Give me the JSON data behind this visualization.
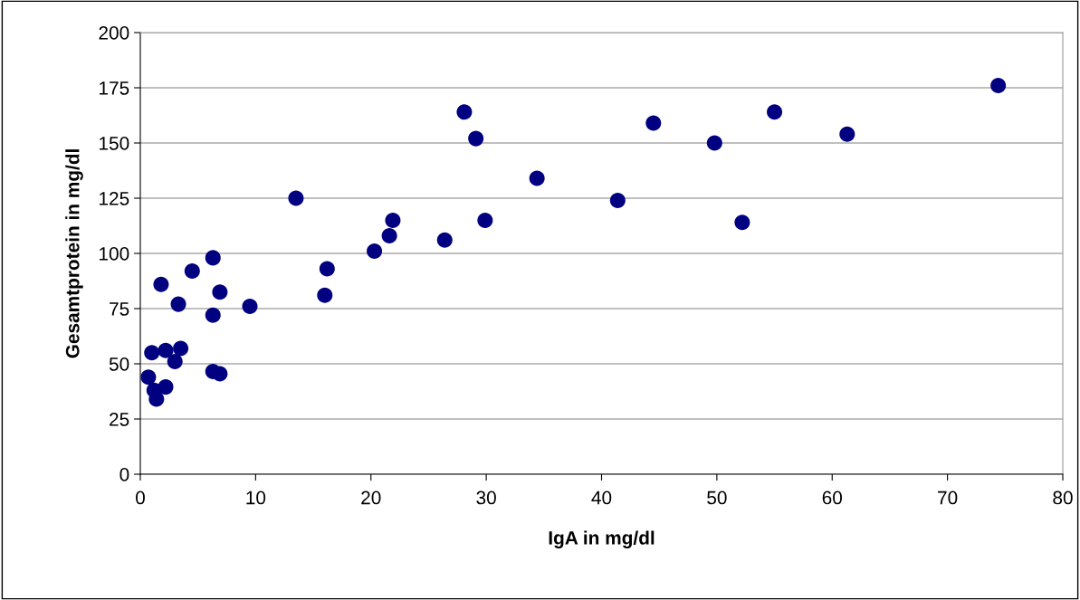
{
  "chart_data": {
    "type": "scatter",
    "xlabel": "IgA in mg/dl",
    "ylabel": "Gesamtprotein in mg/dl",
    "x": [
      0.7,
      0.9,
      1.2,
      1.4,
      1.0,
      1.8,
      2.2,
      2.2,
      3.0,
      3.3,
      3.5,
      4.5,
      6.3,
      6.3,
      6.3,
      6.9,
      6.9,
      9.5,
      13.5,
      16.0,
      16.2,
      20.3,
      21.6,
      21.9,
      26.4,
      28.1,
      29.1,
      29.9,
      34.4,
      41.4,
      44.5,
      49.8,
      52.2,
      55.0,
      61.3,
      74.4
    ],
    "values": [
      44,
      null,
      38,
      34,
      55,
      86,
      56,
      39.5,
      51,
      77,
      57,
      92,
      98,
      72,
      46.5,
      82.5,
      45.5,
      76,
      125,
      81,
      93,
      101,
      108,
      115,
      106,
      164,
      152,
      115,
      134,
      124,
      159,
      150,
      114,
      164,
      154,
      176
    ],
    "color": "#000080",
    "marker": "circle",
    "xlim": [
      0,
      80
    ],
    "xticks": [
      0,
      10,
      20,
      30,
      40,
      50,
      60,
      70,
      80
    ],
    "ylim": [
      0,
      200
    ],
    "yticks": [
      0,
      25,
      50,
      75,
      100,
      125,
      150,
      175,
      200
    ],
    "grid": "y",
    "legend": false
  }
}
